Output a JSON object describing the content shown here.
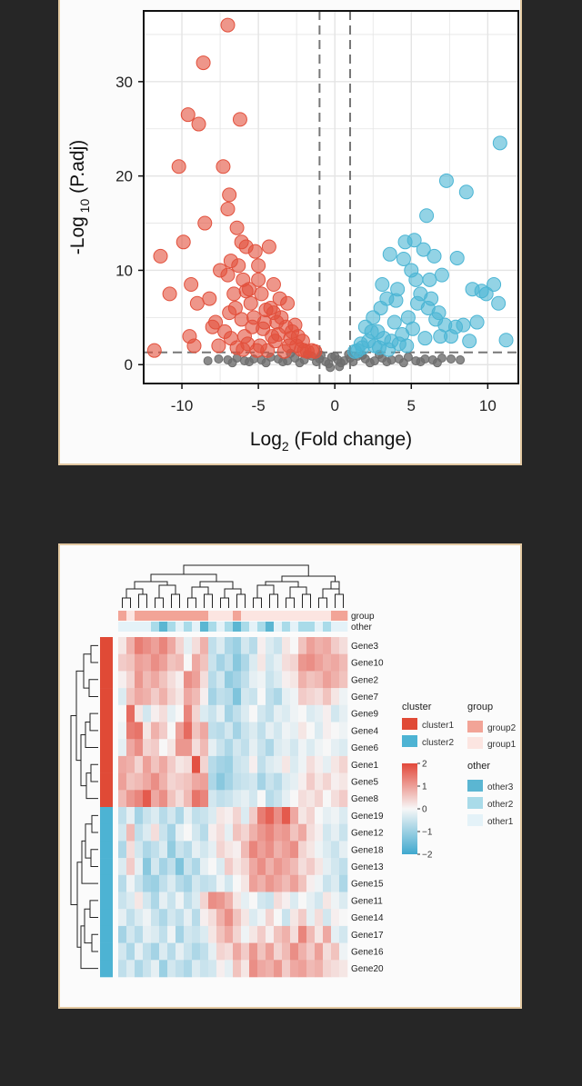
{
  "colors": {
    "up": "#4BB5D4",
    "down": "#E2503C",
    "ns": "#6E6E6E",
    "cluster1": "#E04A36",
    "cluster2": "#4DB3D3",
    "group2": "#F2A497",
    "group1": "#FCE5E1",
    "other3": "#5BB6D2",
    "other2": "#A9DBE9",
    "other1": "#E4F2F8",
    "heat_high": "#E2483A",
    "heat_mid": "#F7F7F7",
    "heat_low": "#3FA8CE",
    "frame": "#E3C9A2",
    "background": "#262626"
  },
  "chart_data": [
    {
      "type": "scatter",
      "xlabel": {
        "base": "Log",
        "sub": "2",
        "rest": " (Fold change)"
      },
      "ylabel": {
        "base": "-Log",
        "sub": " 10",
        "rest": " (P.adj)"
      },
      "xlim": [
        -12.5,
        12
      ],
      "ylim": [
        -2,
        37.5
      ],
      "xticks": [
        "-10",
        "-5",
        "0",
        "5",
        "10"
      ],
      "yticks": [
        "0",
        "10",
        "20",
        "30"
      ],
      "grid": true,
      "thresholds": {
        "x": [
          -1,
          1
        ],
        "y": 1.3
      },
      "series": [
        {
          "key": "down",
          "x": [
            -7.0,
            -8.6,
            -9.6,
            -8.9,
            -6.2,
            -10.2,
            -7.3,
            -6.9,
            -8.5,
            -9.9,
            -6.4,
            -7.0,
            -6.1,
            -11.4,
            -10.8,
            -9.0,
            -6.8,
            -7.5,
            -9.4,
            -5.8,
            -8.2,
            -6.6,
            -7.8,
            -9.2,
            -5.2,
            -11.8,
            -9.5,
            -6.0,
            -4.3,
            -6.3,
            -5.0,
            -4.8,
            -3.6,
            -6.5,
            -5.5,
            -7.2,
            -4.0,
            -5.3,
            -4.6,
            -8.0,
            -6.8,
            -3.2,
            -2.8,
            -5.9,
            -4.1,
            -3.9,
            -7.6,
            -5.7,
            -4.9,
            -3.0,
            -6.0,
            -2.5,
            -4.4,
            -3.3,
            -5.1,
            -2.2,
            -6.4,
            -3.7,
            -4.7,
            -2.0,
            -5.4,
            -3.5,
            -2.9,
            -6.9,
            -4.2,
            -1.8,
            -5.6,
            -3.1,
            -4.5,
            -2.4,
            -1.5,
            -6.1,
            -3.8,
            -2.6,
            -5.0,
            -1.3,
            -4.0,
            -2.1,
            -7.0,
            -5.8
          ],
          "y": [
            36.0,
            32.0,
            26.5,
            25.5,
            26.0,
            21.0,
            21.0,
            18.0,
            15.0,
            13.0,
            14.5,
            16.5,
            13.0,
            11.5,
            7.5,
            6.5,
            11.0,
            10.0,
            8.5,
            12.5,
            7.0,
            7.5,
            4.5,
            2.0,
            12.0,
            1.5,
            3.0,
            9.0,
            12.5,
            10.5,
            9.0,
            7.5,
            7.0,
            6.0,
            6.5,
            3.5,
            5.5,
            5.0,
            4.5,
            4.0,
            2.8,
            4.0,
            3.5,
            3.0,
            3.0,
            2.5,
            2.0,
            2.2,
            2.0,
            2.0,
            1.6,
            2.0,
            1.5,
            1.4,
            1.5,
            1.6,
            1.8,
            3.2,
            3.8,
            1.5,
            4.0,
            5.0,
            2.8,
            5.5,
            6.0,
            1.4,
            8.0,
            6.5,
            5.8,
            3.0,
            1.5,
            4.8,
            4.5,
            4.2,
            10.5,
            1.4,
            8.5,
            2.5,
            9.5,
            7.8
          ]
        },
        {
          "key": "up",
          "x": [
            10.8,
            7.3,
            8.6,
            6.0,
            5.2,
            4.6,
            5.8,
            3.6,
            4.5,
            6.5,
            5.0,
            6.2,
            8.0,
            7.0,
            9.6,
            10.4,
            9.9,
            9.0,
            10.7,
            8.4,
            11.2,
            7.6,
            8.8,
            3.0,
            2.5,
            2.0,
            3.4,
            4.1,
            5.4,
            6.8,
            2.8,
            3.9,
            4.8,
            5.6,
            7.2,
            2.2,
            3.2,
            4.4,
            6.1,
            1.8,
            2.6,
            3.7,
            5.1,
            6.6,
            1.5,
            2.9,
            4.2,
            5.9,
            1.3,
            3.5,
            4.7,
            7.9,
            2.4,
            6.9,
            3.1,
            5.3,
            1.7,
            4.0,
            6.3,
            9.3
          ],
          "y": [
            23.5,
            19.5,
            18.3,
            15.8,
            13.2,
            13.0,
            12.2,
            11.7,
            11.2,
            11.5,
            10.0,
            9.0,
            11.3,
            9.5,
            7.8,
            8.5,
            7.5,
            8.0,
            6.5,
            4.2,
            2.6,
            3.0,
            2.5,
            6.0,
            5.0,
            4.0,
            7.0,
            8.0,
            6.5,
            5.5,
            3.5,
            4.5,
            5.0,
            7.5,
            4.2,
            2.5,
            2.8,
            3.2,
            6.0,
            1.8,
            2.0,
            2.5,
            3.8,
            4.8,
            1.5,
            1.8,
            2.2,
            2.8,
            1.4,
            1.6,
            2.0,
            4.0,
            3.5,
            3.0,
            8.5,
            9.0,
            2.2,
            6.8,
            7.0,
            4.5
          ]
        },
        {
          "key": "ns",
          "x": [
            -7.6,
            -7.0,
            -6.4,
            -5.9,
            -5.3,
            -4.8,
            -4.2,
            -3.7,
            -3.1,
            -2.6,
            -2.0,
            -1.5,
            -1.0,
            -0.6,
            -0.2,
            0.2,
            0.6,
            1.0,
            1.5,
            2.0,
            2.6,
            3.1,
            3.7,
            4.2,
            4.8,
            5.3,
            5.9,
            6.4,
            7.0,
            7.6,
            -6.7,
            -5.6,
            -4.5,
            -3.4,
            -2.3,
            -1.2,
            -0.4,
            0.4,
            1.2,
            2.3,
            3.4,
            4.5,
            5.6,
            6.7,
            -1.8,
            -0.9,
            0.0,
            0.9,
            1.8,
            -2.9,
            2.9,
            -0.3,
            0.3,
            8.2,
            -8.3
          ],
          "y": [
            0.6,
            0.5,
            0.7,
            0.4,
            0.6,
            0.5,
            0.8,
            0.6,
            0.4,
            0.7,
            0.5,
            0.9,
            0.6,
            0.3,
            0.8,
            0.5,
            0.4,
            0.7,
            0.9,
            0.6,
            0.4,
            0.7,
            0.5,
            0.6,
            0.8,
            0.4,
            0.6,
            0.5,
            0.7,
            0.6,
            0.2,
            0.3,
            0.2,
            0.3,
            0.2,
            0.3,
            0.1,
            0.2,
            0.3,
            0.2,
            0.3,
            0.2,
            0.3,
            0.2,
            1.1,
            1.0,
            0.9,
            1.1,
            1.0,
            1.2,
            1.1,
            -0.3,
            -0.2,
            0.5,
            0.4
          ]
        }
      ]
    },
    {
      "type": "heatmap",
      "rows": [
        "Gene3",
        "Gene10",
        "Gene2",
        "Gene7",
        "Gene9",
        "Gene4",
        "Gene6",
        "Gene1",
        "Gene5",
        "Gene8",
        "Gene19",
        "Gene12",
        "Gene18",
        "Gene13",
        "Gene15",
        "Gene11",
        "Gene14",
        "Gene17",
        "Gene16",
        "Gene20"
      ],
      "row_cluster": [
        "cluster1",
        "cluster1",
        "cluster1",
        "cluster1",
        "cluster1",
        "cluster1",
        "cluster1",
        "cluster1",
        "cluster1",
        "cluster1",
        "cluster2",
        "cluster2",
        "cluster2",
        "cluster2",
        "cluster2",
        "cluster2",
        "cluster2",
        "cluster2",
        "cluster2",
        "cluster2"
      ],
      "col_group": [
        "group2",
        "group1",
        "group2",
        "group2",
        "group2",
        "group2",
        "group2",
        "group2",
        "group2",
        "group2",
        "group2",
        "group1",
        "group1",
        "group1",
        "group2",
        "group1",
        "group1",
        "group1",
        "group1",
        "group1",
        "group1",
        "group1",
        "group1",
        "group1",
        "group1",
        "group1",
        "group2",
        "group2"
      ],
      "col_other": [
        "other1",
        "other1",
        "other1",
        "other1",
        "other2",
        "other3",
        "other2",
        "other1",
        "other2",
        "other1",
        "other3",
        "other2",
        "other1",
        "other2",
        "other3",
        "other2",
        "other1",
        "other2",
        "other3",
        "other1",
        "other2",
        "other1",
        "other2",
        "other2",
        "other1",
        "other2",
        "other1",
        "other1"
      ],
      "annotation_labels": {
        "group": "group",
        "other": "other"
      },
      "values": [
        [
          0.2,
          0.8,
          1.4,
          1.2,
          1.0,
          1.3,
          0.9,
          0.4,
          -0.2,
          0.3,
          0.8,
          -0.6,
          -0.3,
          -0.8,
          -1.0,
          -0.4,
          -0.7,
          0.1,
          -0.3,
          -0.5,
          0.2,
          0.0,
          0.6,
          1.0,
          0.8,
          0.9,
          0.5,
          0.3
        ],
        [
          0.5,
          0.6,
          1.0,
          0.9,
          1.2,
          1.0,
          0.6,
          0.7,
          0.0,
          0.9,
          0.6,
          -0.5,
          -0.9,
          -0.6,
          -1.2,
          -0.8,
          -0.3,
          0.2,
          -0.4,
          -0.2,
          0.3,
          0.4,
          1.1,
          1.2,
          1.0,
          0.8,
          0.9,
          0.7
        ],
        [
          0.1,
          0.4,
          1.1,
          0.7,
          0.9,
          0.6,
          0.3,
          0.1,
          1.2,
          1.0,
          0.3,
          -0.7,
          -0.4,
          -1.1,
          -0.9,
          -0.6,
          -0.2,
          -0.1,
          -0.5,
          -0.3,
          0.1,
          0.2,
          0.8,
          0.6,
          0.7,
          1.0,
          0.8,
          0.6
        ],
        [
          -0.3,
          0.6,
          0.9,
          0.8,
          0.5,
          0.8,
          0.4,
          0.2,
          0.9,
          0.7,
          0.1,
          -0.9,
          -0.6,
          -0.7,
          -1.3,
          -0.4,
          -0.5,
          0.0,
          -0.6,
          -0.8,
          -0.2,
          -0.1,
          0.5,
          0.4,
          0.3,
          0.6,
          0.2,
          -0.1
        ],
        [
          0.0,
          1.6,
          0.2,
          -0.4,
          0.1,
          0.3,
          -0.2,
          0.0,
          1.3,
          0.4,
          -0.3,
          -0.5,
          -0.2,
          -0.9,
          -0.6,
          -0.3,
          0.0,
          -0.4,
          -0.6,
          -0.2,
          -0.3,
          -0.1,
          0.0,
          -0.3,
          -0.2,
          0.1,
          -0.4,
          -0.2
        ],
        [
          -0.1,
          1.4,
          1.5,
          0.2,
          0.8,
          0.5,
          0.0,
          1.0,
          1.6,
          0.6,
          0.9,
          -0.6,
          -0.7,
          -0.4,
          -0.9,
          -0.5,
          -0.3,
          -0.6,
          -0.2,
          -0.4,
          -0.1,
          -0.2,
          0.2,
          0.0,
          -0.3,
          0.1,
          0.0,
          -0.1
        ],
        [
          -0.2,
          0.9,
          1.2,
          0.4,
          0.5,
          0.0,
          0.2,
          1.1,
          1.1,
          0.3,
          0.7,
          -0.2,
          -0.5,
          -0.8,
          -0.4,
          -0.6,
          -0.2,
          -0.5,
          -0.8,
          -0.3,
          -0.2,
          -0.4,
          -0.1,
          -0.3,
          -0.1,
          0.0,
          -0.2,
          -0.3
        ],
        [
          0.9,
          0.8,
          0.4,
          1.0,
          0.6,
          0.9,
          0.5,
          0.2,
          0.3,
          1.9,
          0.4,
          -0.7,
          -0.9,
          -1.0,
          -0.5,
          -0.4,
          0.1,
          -0.6,
          -0.3,
          -0.2,
          0.2,
          -0.3,
          -0.1,
          0.3,
          0.1,
          -0.2,
          0.2,
          0.4
        ],
        [
          1.0,
          0.6,
          0.7,
          0.9,
          1.2,
          0.8,
          0.4,
          0.5,
          0.6,
          0.9,
          1.0,
          -0.8,
          -1.2,
          -0.9,
          -0.6,
          -0.5,
          -0.4,
          -0.9,
          -0.5,
          -0.7,
          -0.3,
          -0.2,
          0.1,
          0.5,
          0.2,
          0.4,
          0.1,
          0.2
        ],
        [
          0.7,
          1.1,
          1.3,
          1.8,
          0.9,
          1.2,
          0.6,
          0.3,
          0.7,
          1.5,
          1.3,
          -0.4,
          -0.6,
          -0.5,
          -0.3,
          -0.2,
          -0.4,
          0.0,
          -0.7,
          -0.5,
          -0.2,
          0.0,
          0.3,
          0.2,
          0.4,
          0.0,
          0.3,
          0.5
        ],
        [
          -0.6,
          -0.2,
          -0.9,
          -0.5,
          -0.3,
          -0.7,
          -0.4,
          -0.8,
          -0.2,
          -0.6,
          -0.5,
          -0.3,
          0.2,
          0.1,
          0.4,
          -0.3,
          0.5,
          1.4,
          1.7,
          1.2,
          1.8,
          0.9,
          0.2,
          0.4,
          0.0,
          -0.2,
          -0.1,
          -0.3
        ],
        [
          -0.4,
          0.7,
          -0.6,
          -0.3,
          0.3,
          -0.5,
          -0.9,
          -0.2,
          0.0,
          -0.4,
          -0.7,
          0.1,
          0.3,
          -0.2,
          0.6,
          0.4,
          0.8,
          1.1,
          1.3,
          1.0,
          1.1,
          0.6,
          0.9,
          0.3,
          0.1,
          -0.4,
          -0.2,
          -0.5
        ],
        [
          -0.8,
          0.3,
          -0.4,
          -0.8,
          -0.6,
          -0.3,
          -1.1,
          -0.5,
          -0.7,
          -0.2,
          -0.4,
          -0.2,
          0.4,
          0.2,
          0.1,
          0.7,
          1.3,
          1.0,
          1.2,
          0.8,
          1.0,
          1.2,
          0.4,
          0.2,
          -0.1,
          -0.3,
          -0.5,
          -0.2
        ],
        [
          -0.3,
          0.5,
          -0.2,
          -1.2,
          -0.4,
          -0.9,
          -0.6,
          -1.3,
          -0.5,
          -0.8,
          -0.2,
          0.0,
          -0.3,
          0.5,
          0.2,
          0.4,
          0.9,
          1.2,
          0.8,
          1.1,
          0.9,
          0.7,
          0.3,
          0.5,
          0.2,
          -0.2,
          -0.4,
          -0.6
        ],
        [
          -0.7,
          -0.1,
          -0.5,
          -0.9,
          -1.0,
          -0.6,
          -0.3,
          -0.7,
          -0.9,
          -0.4,
          -0.6,
          -0.5,
          -0.1,
          -0.4,
          0.0,
          0.2,
          1.0,
          0.8,
          1.1,
          0.9,
          0.7,
          1.0,
          0.6,
          0.1,
          -0.1,
          -0.5,
          -0.3,
          -0.8
        ],
        [
          -0.5,
          -0.3,
          0.2,
          -0.4,
          -0.8,
          -0.2,
          -0.5,
          -0.1,
          -0.6,
          -0.3,
          0.4,
          1.2,
          1.1,
          0.8,
          0.2,
          -0.2,
          0.0,
          -0.4,
          -0.5,
          0.3,
          0.1,
          -0.3,
          0.0,
          -0.2,
          -0.4,
          0.2,
          -0.1,
          -0.3
        ],
        [
          -0.2,
          -0.6,
          -0.3,
          -0.1,
          -0.5,
          -0.8,
          -0.4,
          -0.6,
          -0.2,
          -0.7,
          0.1,
          0.3,
          0.8,
          1.2,
          0.6,
          0.2,
          -0.3,
          -0.1,
          0.4,
          0.0,
          -0.5,
          0.2,
          0.5,
          -0.2,
          0.3,
          -0.4,
          0.1,
          0.0
        ],
        [
          -0.9,
          -0.4,
          -0.7,
          -0.2,
          -0.3,
          -0.6,
          -0.1,
          -0.9,
          -0.4,
          -0.5,
          -0.3,
          0.2,
          0.6,
          0.9,
          0.4,
          -0.1,
          0.2,
          0.5,
          0.1,
          0.6,
          0.8,
          0.3,
          1.3,
          0.7,
          0.2,
          0.9,
          -0.2,
          -0.4
        ],
        [
          -0.4,
          -0.8,
          -0.2,
          -0.6,
          -0.9,
          -0.3,
          -0.7,
          -0.2,
          -0.5,
          -0.8,
          -0.6,
          -0.2,
          0.4,
          0.3,
          0.9,
          0.5,
          1.1,
          0.6,
          1.0,
          0.4,
          0.7,
          1.2,
          0.8,
          0.5,
          1.0,
          0.3,
          0.6,
          -0.1
        ],
        [
          -0.6,
          -0.3,
          -0.8,
          -0.5,
          -0.2,
          -1.0,
          -0.4,
          -0.6,
          -0.8,
          -0.3,
          -0.5,
          -0.4,
          0.1,
          -0.2,
          0.6,
          0.2,
          1.2,
          0.9,
          0.8,
          1.1,
          0.5,
          0.9,
          1.0,
          0.7,
          0.8,
          0.4,
          0.3,
          0.2
        ]
      ],
      "legend": {
        "cluster": {
          "title": "cluster",
          "items": [
            "cluster1",
            "cluster2"
          ]
        },
        "group": {
          "title": "group",
          "items": [
            "group2",
            "group1"
          ]
        },
        "other": {
          "title": "other",
          "items": [
            "other3",
            "other2",
            "other1"
          ]
        },
        "scale": {
          "range": [
            -2,
            2
          ],
          "ticks": [
            "2",
            "1",
            "0",
            "−1",
            "−2"
          ]
        }
      }
    }
  ]
}
